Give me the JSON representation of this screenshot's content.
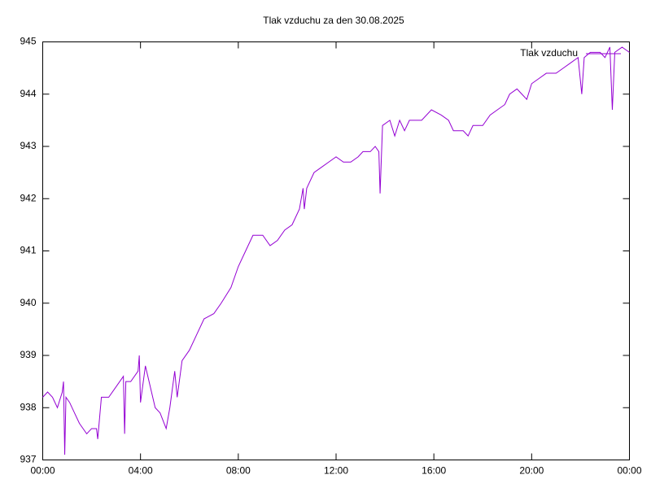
{
  "chart_data": {
    "type": "line",
    "title": "Tlak vzduchu za den 30.08.2025",
    "x": [
      0.0,
      0.2,
      0.4,
      0.6,
      0.8,
      0.85,
      0.9,
      0.95,
      1.1,
      1.3,
      1.5,
      1.8,
      2.0,
      2.2,
      2.25,
      2.4,
      2.7,
      3.0,
      3.3,
      3.35,
      3.4,
      3.6,
      3.9,
      3.95,
      4.0,
      4.2,
      4.4,
      4.6,
      4.8,
      5.05,
      5.2,
      5.4,
      5.5,
      5.7,
      6.0,
      6.3,
      6.6,
      7.0,
      7.3,
      7.7,
      8.0,
      8.3,
      8.6,
      9.0,
      9.3,
      9.6,
      9.9,
      10.2,
      10.5,
      10.65,
      10.7,
      10.8,
      11.1,
      11.4,
      11.7,
      12.0,
      12.3,
      12.6,
      12.9,
      13.1,
      13.4,
      13.6,
      13.75,
      13.8,
      13.9,
      14.2,
      14.4,
      14.6,
      14.8,
      15.0,
      15.5,
      15.9,
      16.3,
      16.6,
      16.8,
      17.2,
      17.4,
      17.6,
      18.0,
      18.3,
      18.6,
      18.9,
      19.1,
      19.4,
      19.6,
      19.8,
      20.0,
      20.3,
      20.6,
      21.0,
      21.3,
      21.6,
      21.9,
      22.05,
      22.15,
      22.4,
      22.8,
      23.0,
      23.2,
      23.3,
      23.4,
      23.7,
      24.0
    ],
    "series": [
      {
        "name": "Tlak vzduchu",
        "color": "#9400d3",
        "values": [
          938.2,
          938.3,
          938.2,
          938.0,
          938.3,
          938.5,
          937.1,
          938.2,
          938.1,
          937.9,
          937.7,
          937.5,
          937.6,
          937.6,
          937.4,
          938.2,
          938.2,
          938.4,
          938.6,
          937.5,
          938.5,
          938.5,
          938.7,
          939.0,
          938.1,
          938.8,
          938.4,
          938.0,
          937.9,
          937.6,
          938.0,
          938.7,
          938.2,
          938.9,
          939.1,
          939.4,
          939.7,
          939.8,
          940.0,
          940.3,
          940.7,
          941.0,
          941.3,
          941.3,
          941.1,
          941.2,
          941.4,
          941.5,
          941.8,
          942.2,
          941.8,
          942.2,
          942.5,
          942.6,
          942.7,
          942.8,
          942.7,
          942.7,
          942.8,
          942.9,
          942.9,
          943.0,
          942.9,
          942.1,
          943.4,
          943.5,
          943.2,
          943.5,
          943.3,
          943.5,
          943.5,
          943.7,
          943.6,
          943.5,
          943.3,
          943.3,
          943.2,
          943.4,
          943.4,
          943.6,
          943.7,
          943.8,
          944.0,
          944.1,
          944.0,
          943.9,
          944.2,
          944.3,
          944.4,
          944.4,
          944.5,
          944.6,
          944.7,
          944.0,
          944.7,
          944.8,
          944.8,
          944.7,
          944.9,
          943.7,
          944.8,
          944.9,
          944.8
        ]
      }
    ],
    "xlim": [
      0,
      24
    ],
    "xticks": [
      {
        "value": 0,
        "label": "00:00"
      },
      {
        "value": 4,
        "label": "04:00"
      },
      {
        "value": 8,
        "label": "08:00"
      },
      {
        "value": 12,
        "label": "12:00"
      },
      {
        "value": 16,
        "label": "16:00"
      },
      {
        "value": 20,
        "label": "20:00"
      },
      {
        "value": 24,
        "label": "00:00"
      }
    ],
    "ylim": [
      937,
      945
    ],
    "yticks": [
      937,
      938,
      939,
      940,
      941,
      942,
      943,
      944,
      945
    ],
    "legend": "top-right"
  }
}
